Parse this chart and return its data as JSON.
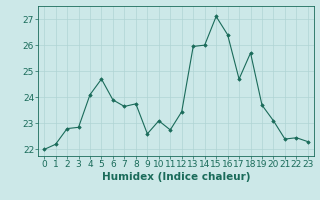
{
  "x": [
    0,
    1,
    2,
    3,
    4,
    5,
    6,
    7,
    8,
    9,
    10,
    11,
    12,
    13,
    14,
    15,
    16,
    17,
    18,
    19,
    20,
    21,
    22,
    23
  ],
  "y": [
    22.0,
    22.2,
    22.8,
    22.85,
    24.1,
    24.7,
    23.9,
    23.65,
    23.75,
    22.6,
    23.1,
    22.75,
    23.45,
    25.95,
    26.0,
    27.1,
    26.4,
    24.7,
    25.7,
    23.7,
    23.1,
    22.4,
    22.45,
    22.3
  ],
  "line_color": "#1a6b5a",
  "marker_color": "#1a6b5a",
  "bg_color": "#cce8e8",
  "grid_color": "#b0d4d4",
  "xlabel": "Humidex (Indice chaleur)",
  "ylim": [
    21.75,
    27.5
  ],
  "xlim": [
    -0.5,
    23.5
  ],
  "yticks": [
    22,
    23,
    24,
    25,
    26,
    27
  ],
  "xticks": [
    0,
    1,
    2,
    3,
    4,
    5,
    6,
    7,
    8,
    9,
    10,
    11,
    12,
    13,
    14,
    15,
    16,
    17,
    18,
    19,
    20,
    21,
    22,
    23
  ],
  "tick_fontsize": 6.5,
  "xlabel_fontsize": 7.5
}
